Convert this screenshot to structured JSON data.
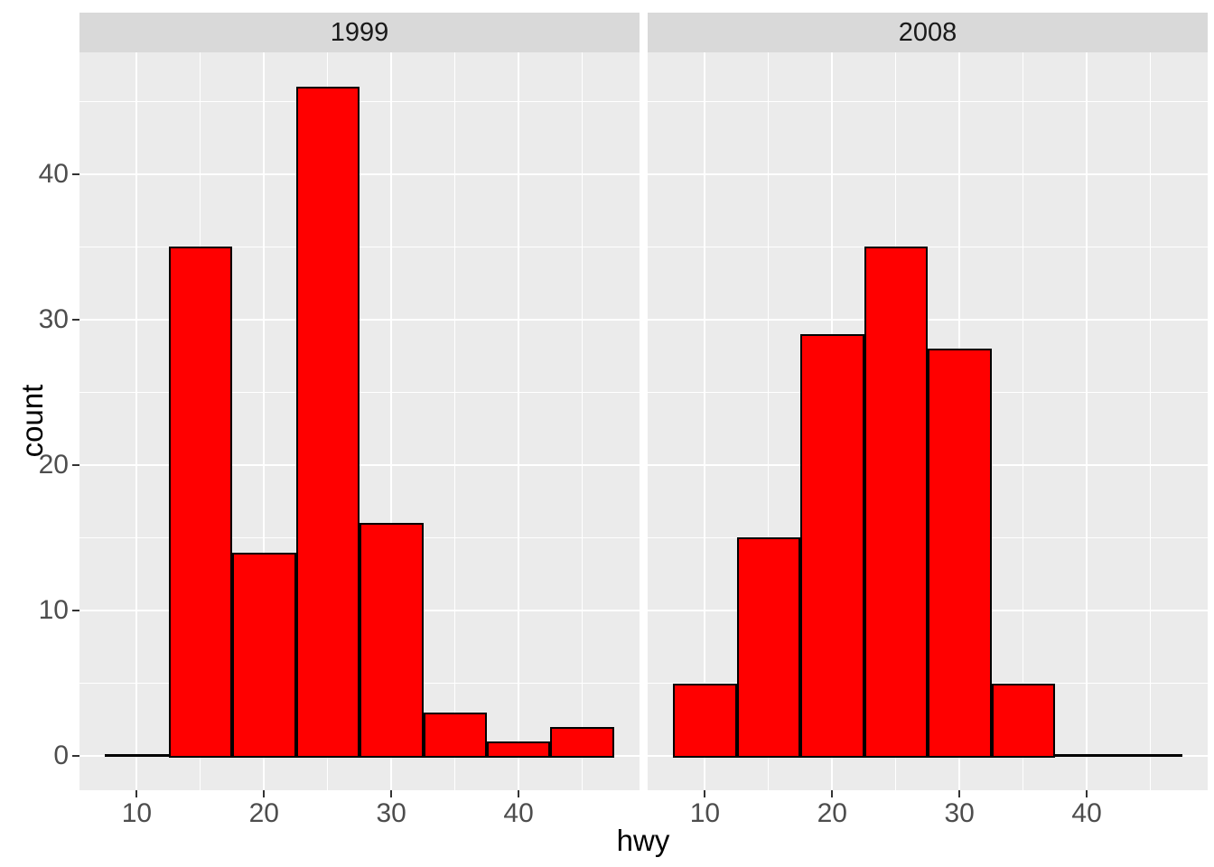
{
  "chart_data": {
    "type": "bar",
    "subtype": "faceted-histogram",
    "title": "",
    "xlabel": "hwy",
    "ylabel": "count",
    "facet_labels": [
      "1999",
      "2008"
    ],
    "bin_width": 5,
    "bin_centers": [
      10,
      15,
      20,
      25,
      30,
      35,
      40,
      45
    ],
    "bin_edges": [
      7.5,
      12.5,
      17.5,
      22.5,
      27.5,
      32.5,
      37.5,
      42.5,
      47.5
    ],
    "series": [
      {
        "name": "1999",
        "values": [
          0,
          35,
          14,
          46,
          16,
          3,
          1,
          2
        ]
      },
      {
        "name": "2008",
        "values": [
          5,
          15,
          29,
          35,
          28,
          5,
          0,
          0
        ]
      }
    ],
    "x_ticks": [
      10,
      20,
      30,
      40
    ],
    "x_minor_ticks": [
      15,
      25,
      35,
      45
    ],
    "y_ticks": [
      0,
      10,
      20,
      30,
      40
    ],
    "y_minor_ticks": [
      5,
      15,
      25,
      35,
      45
    ],
    "xlim": [
      5.5,
      49.5
    ],
    "ylim": [
      -2.36,
      48.36
    ],
    "grid": "on",
    "legend": "none",
    "colors": {
      "bar_fill": "#FF0000",
      "bar_stroke": "#000000",
      "panel_bg": "#EBEBEB",
      "strip_bg": "#D9D9D9",
      "gridline": "#FFFFFF",
      "tick_label_text": "#4D4D4D",
      "strip_text": "#1A1A1A",
      "axis_title_text": "#000000",
      "tick_mark": "#333333"
    }
  }
}
